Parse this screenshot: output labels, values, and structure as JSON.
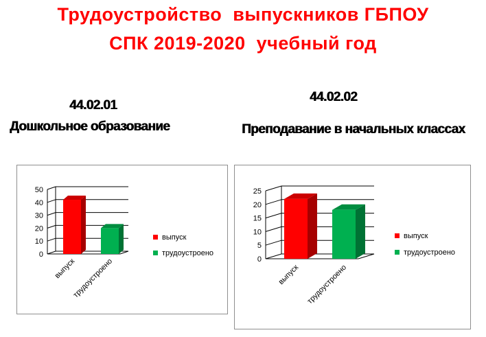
{
  "title": {
    "line1": "Трудоустройство  выпускников ГБПОУ",
    "line2": "СПК 2019-2020  учебный год"
  },
  "colors": {
    "title": "#ff0000",
    "series_release": "#ff0000",
    "series_employed": "#00b050"
  },
  "left": {
    "code": "44.02.01",
    "name": "Дошкольное образование"
  },
  "right": {
    "code": "44.02.02",
    "name": "Преподавание в начальных классах"
  },
  "chart_data": [
    {
      "type": "bar",
      "categories": [
        "выпуск",
        "трудоустроено"
      ],
      "values": [
        42,
        20
      ],
      "series": [
        {
          "name": "выпуск",
          "color": "#ff0000",
          "values": [
            42,
            null
          ]
        },
        {
          "name": "трудоустроено",
          "color": "#00b050",
          "values": [
            null,
            20
          ]
        }
      ],
      "ylim": [
        0,
        50
      ],
      "yticks": [
        0,
        10,
        20,
        30,
        40,
        50
      ],
      "grid": true,
      "legend": "right"
    },
    {
      "type": "bar",
      "categories": [
        "выпуск",
        "трудоустроено"
      ],
      "values": [
        22,
        18
      ],
      "series": [
        {
          "name": "выпуск",
          "color": "#ff0000",
          "values": [
            22,
            null
          ]
        },
        {
          "name": "трудоустроено",
          "color": "#00b050",
          "values": [
            null,
            18
          ]
        }
      ],
      "ylim": [
        0,
        25
      ],
      "yticks": [
        0,
        5,
        10,
        15,
        20,
        25
      ],
      "grid": true,
      "legend": "right"
    }
  ]
}
